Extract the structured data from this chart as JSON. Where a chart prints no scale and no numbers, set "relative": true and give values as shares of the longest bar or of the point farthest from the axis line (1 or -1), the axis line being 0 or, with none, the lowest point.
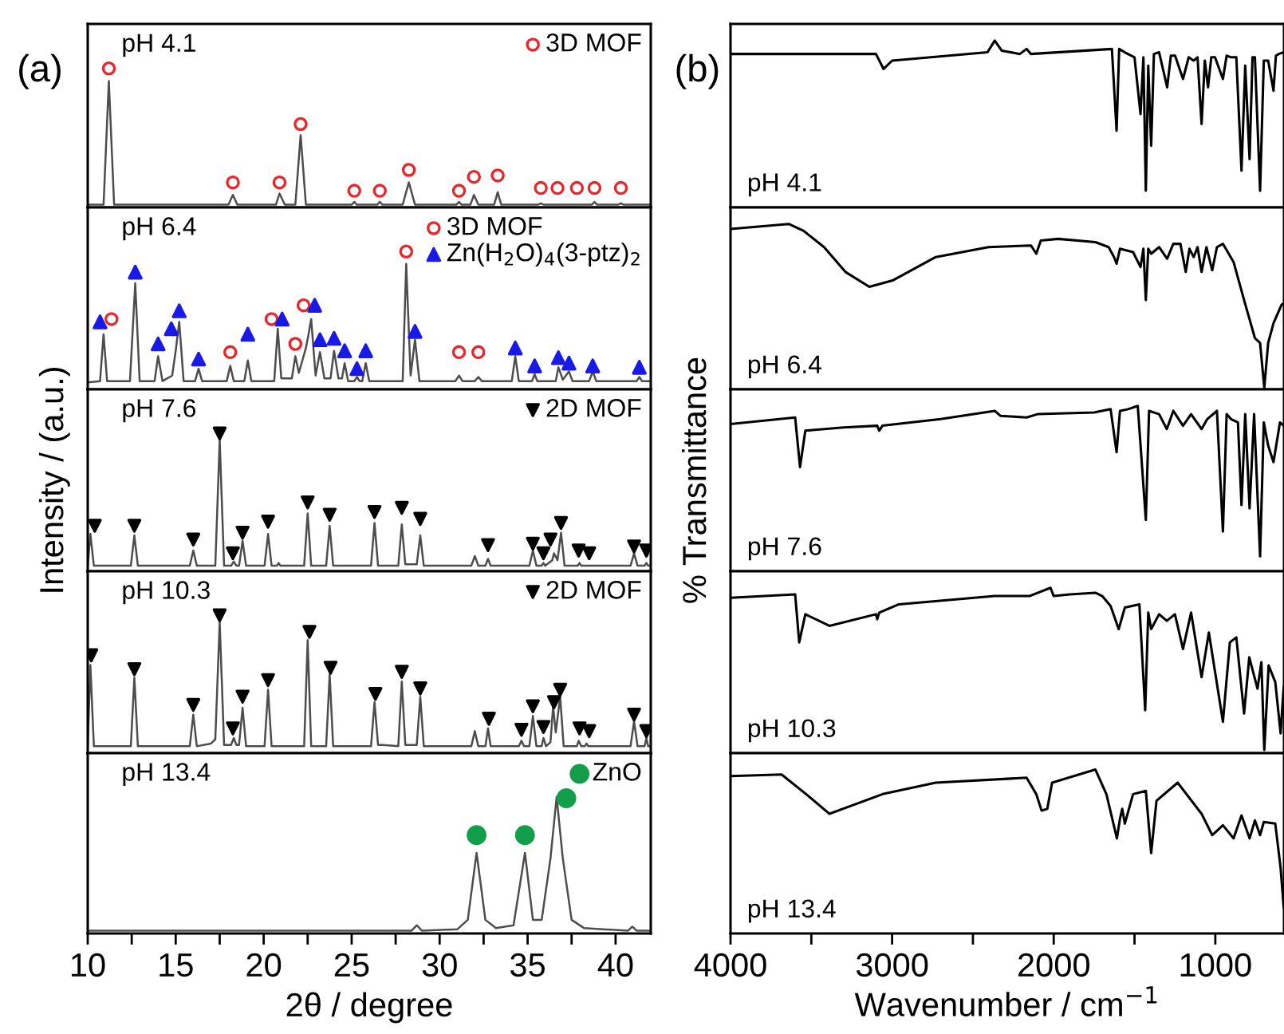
{
  "chart_data": [
    {
      "type": "line",
      "title": "(a)",
      "annotations": [
        "pH 4.1"
      ],
      "relative": true,
      "xlim": [
        10,
        42
      ],
      "tick_labels": false,
      "legend": "top right",
      "series": [
        {
          "color": "#4d4d4d",
          "x": [
            10.0,
            10.9,
            11.2,
            11.5,
            18.0,
            18.25,
            18.5,
            20.7,
            20.9,
            21.2,
            21.8,
            22.1,
            22.4,
            25.0,
            25.15,
            25.3,
            26.45,
            26.6,
            26.75,
            27.9,
            28.25,
            28.6,
            30.95,
            31.1,
            31.25,
            31.75,
            31.95,
            32.2,
            33.1,
            33.3,
            33.5,
            35.6,
            35.75,
            35.9,
            38.65,
            38.8,
            38.95,
            40.15,
            40.3,
            40.45,
            42.0
          ],
          "values": [
            0.02,
            0.02,
            0.91,
            0.02,
            0.02,
            0.09,
            0.02,
            0.02,
            0.1,
            0.02,
            0.02,
            0.52,
            0.02,
            0.02,
            0.04,
            0.02,
            0.02,
            0.04,
            0.02,
            0.02,
            0.18,
            0.02,
            0.02,
            0.04,
            0.02,
            0.02,
            0.09,
            0.02,
            0.02,
            0.11,
            0.02,
            0.02,
            0.03,
            0.02,
            0.02,
            0.04,
            0.02,
            0.02,
            0.03,
            0.02,
            0.02
          ]
        },
        {
          "name": "3D MOF",
          "type": "scatter",
          "marker": "open_circle",
          "color": "#e8262b",
          "x": [
            11.2,
            18.25,
            20.9,
            22.1,
            25.15,
            26.6,
            28.25,
            31.1,
            31.95,
            33.3,
            35.75,
            36.7,
            37.8,
            38.8,
            40.3
          ],
          "values": [
            1.0,
            0.18,
            0.18,
            0.6,
            0.12,
            0.12,
            0.27,
            0.12,
            0.22,
            0.23,
            0.14,
            0.14,
            0.14,
            0.14,
            0.14
          ]
        }
      ]
    },
    {
      "type": "line",
      "annotations": [
        "pH 6.4"
      ],
      "relative": true,
      "xlim": [
        10,
        42
      ],
      "tick_labels": false,
      "legend": "top right",
      "series": [
        {
          "color": "#4d4d4d",
          "x": [
            10.0,
            10.7,
            10.9,
            11.1,
            12.4,
            12.7,
            12.95,
            13.8,
            14.0,
            14.25,
            14.8,
            15.0,
            15.2,
            15.45,
            16.1,
            16.3,
            16.5,
            17.9,
            18.1,
            18.3,
            18.9,
            19.1,
            19.3,
            20.6,
            20.8,
            21.0,
            21.6,
            21.8,
            22.0,
            22.4,
            22.55,
            22.7,
            22.95,
            23.2,
            23.45,
            23.8,
            24.0,
            24.25,
            24.45,
            24.6,
            24.8,
            25.15,
            25.3,
            25.45,
            25.6,
            25.8,
            26.0,
            27.9,
            28.1,
            28.35,
            28.6,
            28.85,
            30.9,
            31.1,
            31.3,
            32.0,
            32.2,
            32.4,
            34.1,
            34.3,
            34.5,
            35.25,
            35.4,
            35.55,
            36.6,
            36.75,
            37.0,
            37.35,
            37.55,
            38.5,
            38.7,
            38.9,
            41.2,
            41.35,
            41.5,
            42.0
          ],
          "values": [
            0.05,
            0.06,
            0.4,
            0.06,
            0.06,
            0.77,
            0.06,
            0.06,
            0.24,
            0.06,
            0.1,
            0.28,
            0.49,
            0.06,
            0.06,
            0.15,
            0.06,
            0.06,
            0.17,
            0.06,
            0.06,
            0.21,
            0.06,
            0.06,
            0.44,
            0.08,
            0.08,
            0.24,
            0.12,
            0.3,
            0.4,
            0.51,
            0.1,
            0.27,
            0.08,
            0.08,
            0.28,
            0.08,
            0.08,
            0.19,
            0.06,
            0.06,
            0.09,
            0.06,
            0.06,
            0.19,
            0.06,
            0.06,
            0.91,
            0.1,
            0.36,
            0.06,
            0.06,
            0.1,
            0.06,
            0.06,
            0.09,
            0.06,
            0.06,
            0.24,
            0.06,
            0.06,
            0.11,
            0.06,
            0.06,
            0.16,
            0.07,
            0.13,
            0.06,
            0.06,
            0.13,
            0.06,
            0.06,
            0.09,
            0.06,
            0.06
          ]
        },
        {
          "name": "3D MOF",
          "type": "scatter",
          "marker": "open_circle",
          "color": "#e8262b",
          "x": [
            11.35,
            18.1,
            20.45,
            21.8,
            22.27,
            28.1,
            31.1,
            32.2
          ],
          "values": [
            0.51,
            0.27,
            0.51,
            0.33,
            0.61,
            1.0,
            0.27,
            0.27
          ]
        },
        {
          "name": "Zn(H$_{2}$O)$_{4}$(3-ptz)$_{2}$",
          "type": "scatter",
          "marker": "triangle",
          "color": "#1a1ae6",
          "x": [
            10.7,
            12.7,
            14.0,
            14.75,
            15.2,
            16.3,
            19.1,
            21.05,
            22.9,
            23.2,
            24.0,
            24.6,
            25.3,
            25.8,
            28.6,
            34.3,
            35.4,
            36.75,
            37.35,
            38.7,
            41.35
          ],
          "values": [
            0.49,
            0.85,
            0.33,
            0.44,
            0.57,
            0.22,
            0.4,
            0.51,
            0.61,
            0.36,
            0.37,
            0.28,
            0.15,
            0.28,
            0.42,
            0.3,
            0.17,
            0.23,
            0.19,
            0.17,
            0.16
          ]
        }
      ]
    },
    {
      "type": "line",
      "annotations": [
        "pH 7.6"
      ],
      "relative": true,
      "xlim": [
        10,
        42
      ],
      "tick_labels": false,
      "legend": "top right",
      "ylabel": "Intensity / (a.u.)",
      "series": [
        {
          "color": "#4d4d4d",
          "x": [
            10.0,
            10.15,
            10.35,
            12.45,
            12.65,
            12.85,
            15.8,
            16.0,
            16.2,
            17.25,
            17.5,
            17.75,
            18.15,
            18.3,
            18.45,
            18.6,
            18.8,
            19.0,
            20.05,
            20.25,
            20.45,
            20.75,
            20.85,
            20.95,
            22.3,
            22.5,
            22.7,
            23.55,
            23.75,
            23.95,
            26.1,
            26.3,
            26.5,
            27.65,
            27.85,
            28.05,
            28.7,
            28.9,
            29.1,
            31.8,
            32.0,
            32.2,
            32.6,
            32.75,
            32.9,
            35.1,
            35.3,
            35.5,
            35.8,
            35.9,
            36.0,
            36.4,
            36.5,
            36.7,
            36.9,
            37.1,
            37.85,
            37.95,
            38.05,
            40.85,
            41.05,
            41.25,
            41.65,
            41.75,
            41.85,
            42.0
          ],
          "values": [
            0.04,
            0.27,
            0.04,
            0.04,
            0.26,
            0.04,
            0.04,
            0.15,
            0.04,
            0.04,
            0.95,
            0.04,
            0.04,
            0.07,
            0.04,
            0.04,
            0.22,
            0.04,
            0.04,
            0.27,
            0.04,
            0.04,
            0.06,
            0.04,
            0.04,
            0.42,
            0.04,
            0.04,
            0.33,
            0.04,
            0.04,
            0.35,
            0.04,
            0.04,
            0.34,
            0.05,
            0.05,
            0.26,
            0.04,
            0.04,
            0.11,
            0.04,
            0.04,
            0.09,
            0.04,
            0.04,
            0.15,
            0.04,
            0.04,
            0.06,
            0.04,
            0.08,
            0.13,
            0.08,
            0.28,
            0.04,
            0.04,
            0.06,
            0.04,
            0.04,
            0.13,
            0.04,
            0.04,
            0.06,
            0.04,
            0.04
          ]
        },
        {
          "name": "2D MOF",
          "type": "scatter",
          "marker": "triangle_down",
          "color": "#000000",
          "x": [
            10.4,
            12.65,
            16.0,
            17.5,
            18.25,
            18.8,
            20.25,
            22.5,
            23.75,
            26.3,
            27.85,
            28.9,
            32.75,
            35.3,
            35.9,
            36.3,
            36.9,
            37.9,
            38.5,
            41.05,
            41.75
          ],
          "values": [
            0.33,
            0.33,
            0.23,
            1.0,
            0.13,
            0.28,
            0.36,
            0.5,
            0.41,
            0.43,
            0.46,
            0.38,
            0.19,
            0.2,
            0.13,
            0.23,
            0.35,
            0.15,
            0.13,
            0.18,
            0.15
          ]
        }
      ]
    },
    {
      "type": "line",
      "annotations": [
        "pH 10.3"
      ],
      "relative": true,
      "xlim": [
        10,
        42
      ],
      "tick_labels": false,
      "legend": "top right",
      "series": [
        {
          "color": "#4d4d4d",
          "x": [
            10.0,
            10.15,
            10.35,
            12.45,
            12.65,
            12.85,
            15.8,
            16.0,
            16.2,
            17.0,
            17.25,
            17.5,
            17.75,
            18.15,
            18.3,
            18.45,
            18.6,
            18.8,
            19.0,
            20.05,
            20.25,
            20.45,
            22.3,
            22.5,
            22.7,
            23.55,
            23.75,
            23.95,
            26.1,
            26.3,
            26.5,
            26.8,
            27.65,
            27.85,
            28.05,
            28.7,
            28.9,
            29.1,
            31.8,
            32.0,
            32.2,
            32.6,
            32.75,
            32.9,
            34.5,
            34.65,
            34.8,
            35.1,
            35.3,
            35.5,
            35.8,
            35.9,
            36.05,
            36.3,
            36.45,
            36.6,
            36.85,
            37.05,
            37.8,
            37.9,
            38.05,
            38.25,
            38.35,
            38.45,
            40.85,
            41.05,
            41.25,
            41.65,
            41.75,
            41.85,
            42.0
          ],
          "values": [
            0.05,
            0.64,
            0.05,
            0.05,
            0.55,
            0.05,
            0.05,
            0.28,
            0.05,
            0.07,
            0.1,
            0.95,
            0.06,
            0.06,
            0.11,
            0.06,
            0.06,
            0.33,
            0.05,
            0.05,
            0.46,
            0.05,
            0.05,
            0.82,
            0.05,
            0.05,
            0.57,
            0.05,
            0.05,
            0.37,
            0.06,
            0.06,
            0.05,
            0.52,
            0.06,
            0.06,
            0.41,
            0.05,
            0.05,
            0.16,
            0.05,
            0.05,
            0.18,
            0.05,
            0.05,
            0.09,
            0.05,
            0.05,
            0.27,
            0.05,
            0.05,
            0.11,
            0.05,
            0.08,
            0.34,
            0.15,
            0.41,
            0.05,
            0.05,
            0.09,
            0.05,
            0.05,
            0.07,
            0.05,
            0.05,
            0.23,
            0.05,
            0.05,
            0.11,
            0.05,
            0.05
          ]
        },
        {
          "name": "2D MOF",
          "type": "scatter",
          "marker": "triangle_down",
          "color": "#000000",
          "x": [
            10.2,
            12.65,
            16.0,
            17.5,
            18.25,
            18.8,
            20.25,
            22.6,
            23.8,
            26.35,
            27.85,
            28.9,
            32.8,
            34.65,
            35.3,
            35.9,
            36.5,
            36.85,
            37.95,
            38.5,
            41.05,
            41.75
          ],
          "values": [
            0.71,
            0.61,
            0.35,
            1.0,
            0.18,
            0.41,
            0.53,
            0.88,
            0.62,
            0.43,
            0.59,
            0.47,
            0.25,
            0.17,
            0.34,
            0.19,
            0.37,
            0.46,
            0.18,
            0.16,
            0.28,
            0.16
          ]
        }
      ]
    },
    {
      "type": "line",
      "annotations": [
        "pH 13.4"
      ],
      "relative": true,
      "xlim": [
        10,
        42
      ],
      "xticks": [
        10,
        {
          "value": 12.5,
          "label": null
        },
        15,
        {
          "value": 17.5,
          "label": null
        },
        20,
        {
          "value": 22.5,
          "label": null
        },
        25,
        {
          "value": 27.5,
          "label": null
        },
        30,
        {
          "value": 32.5,
          "label": null
        },
        35,
        {
          "value": 37.5,
          "label": null
        },
        40
      ],
      "tick_labels": "x",
      "xlabel": "2θ / degree",
      "legend": "top right",
      "series": [
        {
          "color": "#4d4d4d",
          "x": [
            10.0,
            28.4,
            28.7,
            29.0,
            31.0,
            31.6,
            32.1,
            32.6,
            33.2,
            34.2,
            34.85,
            35.3,
            35.8,
            36.3,
            36.65,
            37.0,
            37.5,
            38.2,
            40.7,
            40.95,
            41.2,
            42.0
          ],
          "values": [
            0.02,
            0.02,
            0.06,
            0.02,
            0.03,
            0.1,
            0.59,
            0.1,
            0.04,
            0.06,
            0.59,
            0.1,
            0.1,
            0.55,
            1.0,
            0.55,
            0.1,
            0.04,
            0.02,
            0.05,
            0.02,
            0.02
          ]
        },
        {
          "name": "ZnO",
          "type": "scatter",
          "marker": "circle",
          "color": "#129e4a",
          "x": [
            32.1,
            34.85,
            37.2
          ],
          "values": [
            0.72,
            0.72,
            0.99
          ]
        }
      ]
    },
    {
      "type": "line",
      "title": "(b)",
      "annotations": [
        "pH 4.1"
      ],
      "relative": true,
      "xlim": [
        4000,
        575
      ],
      "tick_labels": false,
      "series": [
        {
          "color": "#000000",
          "x": [
            4000,
            3100,
            3053,
            3000,
            2410,
            2365,
            2322,
            2210,
            2168,
            2141,
            1640,
            1611,
            1595,
            1560,
            1500,
            1463,
            1445,
            1430,
            1415,
            1397,
            1380,
            1348,
            1298,
            1275,
            1249,
            1200,
            1165,
            1134,
            1110,
            1085,
            1065,
            1045,
            1025,
            1002,
            953,
            930,
            903,
            870,
            838,
            815,
            788,
            770,
            755,
            723,
            700,
            673,
            640,
            625,
            607,
            577
          ],
          "values": [
            0.92,
            0.92,
            0.83,
            0.88,
            0.93,
            1.0,
            0.94,
            0.92,
            0.95,
            0.92,
            0.95,
            0.46,
            0.95,
            0.93,
            0.9,
            0.56,
            0.9,
            0.1,
            0.85,
            0.37,
            0.92,
            0.93,
            0.72,
            0.91,
            0.91,
            0.77,
            0.9,
            0.88,
            0.9,
            0.5,
            0.88,
            0.72,
            0.9,
            0.9,
            0.77,
            0.91,
            0.9,
            0.9,
            0.22,
            0.85,
            0.29,
            0.9,
            0.9,
            0.1,
            0.88,
            0.88,
            0.7,
            0.91,
            0.92,
            0.93
          ]
        }
      ]
    },
    {
      "type": "line",
      "annotations": [
        "pH 6.4"
      ],
      "relative": true,
      "xlim": [
        4000,
        575
      ],
      "tick_labels": false,
      "series": [
        {
          "color": "#000000",
          "x": [
            4000,
            3640,
            3550,
            3421,
            3289,
            3141,
            2993,
            2730,
            2404,
            2141,
            2108,
            2080,
            1973,
            1742,
            1660,
            1627,
            1611,
            1590,
            1509,
            1463,
            1445,
            1430,
            1415,
            1397,
            1348,
            1298,
            1260,
            1216,
            1183,
            1160,
            1134,
            1110,
            1085,
            1055,
            1019,
            990,
            953,
            887,
            822,
            755,
            723,
            697,
            673,
            640,
            591,
            577
          ],
          "values": [
            0.97,
            1.0,
            0.96,
            0.86,
            0.71,
            0.62,
            0.66,
            0.8,
            0.86,
            0.87,
            0.82,
            0.9,
            0.91,
            0.89,
            0.86,
            0.8,
            0.76,
            0.85,
            0.83,
            0.74,
            0.85,
            0.54,
            0.85,
            0.82,
            0.86,
            0.79,
            0.88,
            0.88,
            0.71,
            0.85,
            0.8,
            0.86,
            0.71,
            0.86,
            0.72,
            0.86,
            0.88,
            0.77,
            0.54,
            0.31,
            0.28,
            0.01,
            0.28,
            0.4,
            0.51,
            0.52
          ]
        }
      ]
    },
    {
      "type": "line",
      "annotations": [
        "pH 7.6"
      ],
      "relative": true,
      "xlim": [
        4000,
        575
      ],
      "tick_labels": false,
      "ylabel": "% Transmittance",
      "series": [
        {
          "color": "#000000",
          "x": [
            4000,
            3600,
            3570,
            3537,
            3300,
            3092,
            3080,
            3060,
            2700,
            2365,
            2330,
            2168,
            2100,
            1750,
            1648,
            1611,
            1590,
            1540,
            1480,
            1430,
            1410,
            1348,
            1300,
            1260,
            1200,
            1150,
            1085,
            1050,
            990,
            953,
            930,
            903,
            860,
            838,
            815,
            788,
            760,
            723,
            700,
            673,
            640,
            600,
            577
          ],
          "values": [
            0.89,
            0.93,
            0.63,
            0.85,
            0.87,
            0.88,
            0.85,
            0.88,
            0.92,
            0.97,
            0.94,
            0.93,
            0.95,
            0.96,
            0.98,
            0.72,
            0.97,
            0.98,
            1.0,
            0.31,
            0.97,
            0.95,
            0.86,
            0.97,
            0.88,
            0.95,
            0.86,
            0.92,
            0.97,
            0.24,
            0.95,
            0.92,
            0.9,
            0.4,
            0.95,
            0.38,
            0.95,
            0.09,
            0.9,
            0.76,
            0.66,
            0.9,
            0.88
          ]
        }
      ]
    },
    {
      "type": "line",
      "annotations": [
        "pH 10.3"
      ],
      "relative": true,
      "xlim": [
        4000,
        575
      ],
      "tick_labels": false,
      "series": [
        {
          "color": "#000000",
          "x": [
            4000,
            3600,
            3575,
            3537,
            3388,
            3100,
            3092,
            3080,
            2958,
            2365,
            2150,
            2020,
            2000,
            1900,
            1742,
            1700,
            1648,
            1598,
            1560,
            1470,
            1434,
            1415,
            1397,
            1348,
            1300,
            1250,
            1200,
            1150,
            1085,
            1040,
            953,
            910,
            870,
            822,
            790,
            739,
            715,
            697,
            670,
            629,
            596,
            577
          ],
          "values": [
            0.94,
            0.96,
            0.67,
            0.84,
            0.77,
            0.84,
            0.81,
            0.85,
            0.9,
            0.95,
            0.95,
            1.0,
            0.95,
            0.96,
            0.97,
            0.95,
            0.89,
            0.75,
            0.88,
            0.9,
            0.26,
            0.85,
            0.75,
            0.84,
            0.8,
            0.84,
            0.63,
            0.85,
            0.46,
            0.73,
            0.19,
            0.67,
            0.7,
            0.24,
            0.58,
            0.39,
            0.55,
            0.02,
            0.53,
            0.43,
            0.12,
            0.4
          ]
        }
      ]
    },
    {
      "type": "line",
      "annotations": [
        "pH 13.4"
      ],
      "relative": true,
      "xlim": [
        4000,
        575
      ],
      "xticks": [
        4000,
        {
          "value": 3500,
          "label": null
        },
        3000,
        {
          "value": 2500,
          "label": null
        },
        2000,
        {
          "value": 1500,
          "label": null
        },
        1000
      ],
      "tick_labels": "x",
      "xlabel": "Wavenumber / cm$^{−1}$",
      "series": [
        {
          "color": "#000000",
          "x": [
            4000,
            3684,
            3520,
            3388,
            3059,
            2730,
            2168,
            2108,
            2075,
            2040,
            2010,
            1742,
            1674,
            1609,
            1590,
            1576,
            1560,
            1509,
            1430,
            1397,
            1364,
            1233,
            1085,
            1019,
            953,
            887,
            838,
            788,
            755,
            723,
            700,
            629,
            596,
            577
          ],
          "values": [
            0.96,
            0.97,
            0.84,
            0.73,
            0.85,
            0.92,
            0.95,
            0.85,
            0.75,
            0.76,
            0.92,
            1.0,
            0.85,
            0.58,
            0.7,
            0.76,
            0.67,
            0.85,
            0.87,
            0.49,
            0.81,
            0.92,
            0.73,
            0.6,
            0.66,
            0.58,
            0.72,
            0.58,
            0.69,
            0.6,
            0.68,
            0.67,
            0.4,
            0.16
          ]
        }
      ]
    }
  ]
}
